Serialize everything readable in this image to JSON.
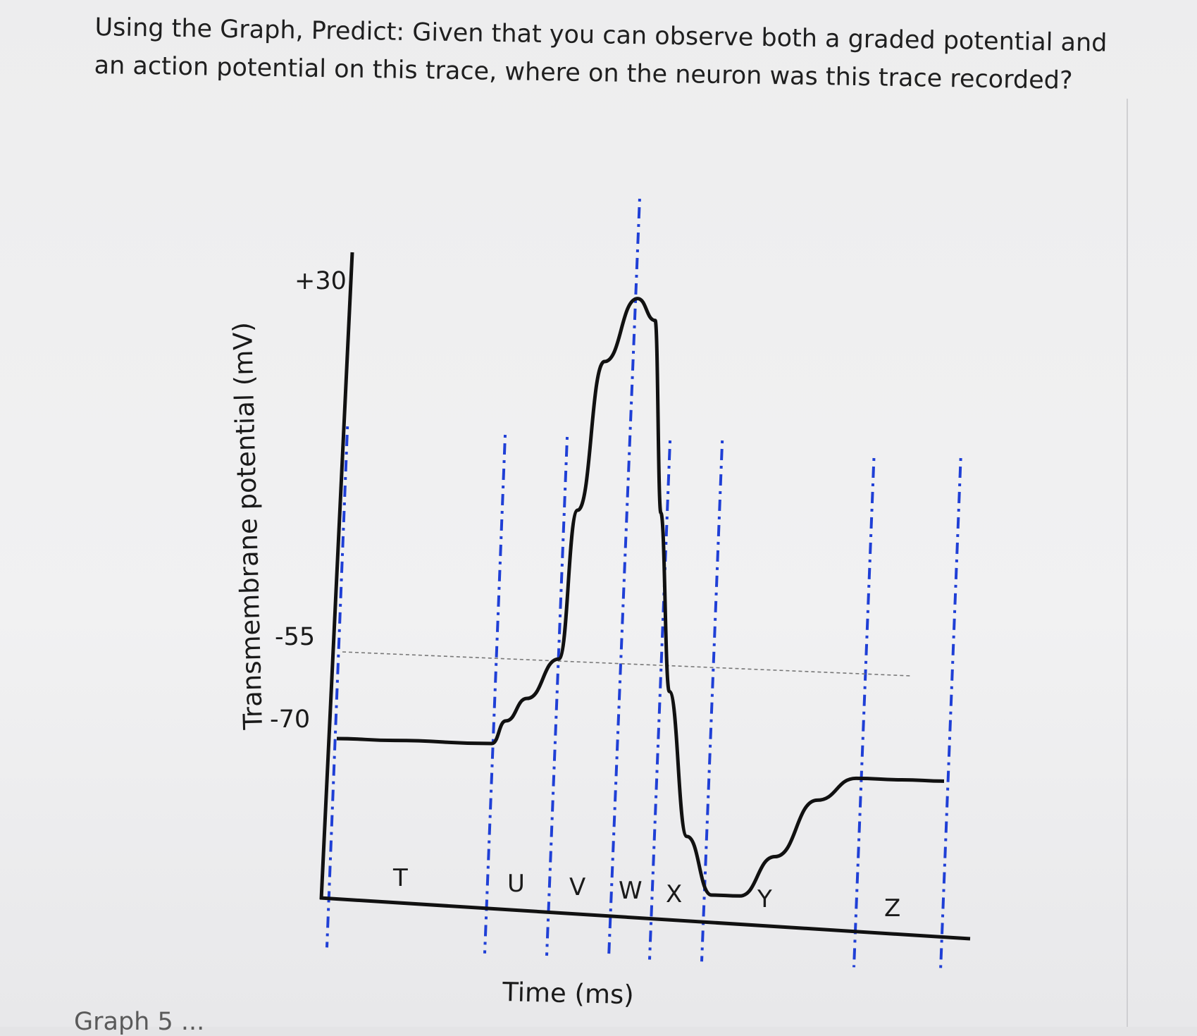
{
  "question": "Using the Graph, Predict: Given that you can observe both a graded potential and an action potential on this trace, where on the neuron was this trace recorded?",
  "footer_fragment": "Graph 5 ...",
  "chart_data": {
    "type": "line",
    "title": "",
    "xlabel": "Time (ms)",
    "ylabel": "Transmembrane potential (mV)",
    "y_ticks": [
      {
        "value": 30,
        "label": "+30"
      },
      {
        "value": -55,
        "label": "-55"
      },
      {
        "value": -70,
        "label": "-70"
      }
    ],
    "threshold_mv": -55,
    "segments": [
      "T",
      "U",
      "V",
      "W",
      "X",
      "Y",
      "Z"
    ],
    "series": [
      {
        "values": [
          -70,
          -70,
          -70,
          -66,
          -62,
          -55,
          -20,
          15,
          30,
          25,
          -20,
          -60,
          -85,
          -95,
          -95,
          -88,
          -78,
          -74,
          -74,
          -74
        ]
      }
    ],
    "colors": {
      "trace": "#111111",
      "divider": "#1f3fd6",
      "threshold": "#777777"
    },
    "grid": false
  }
}
